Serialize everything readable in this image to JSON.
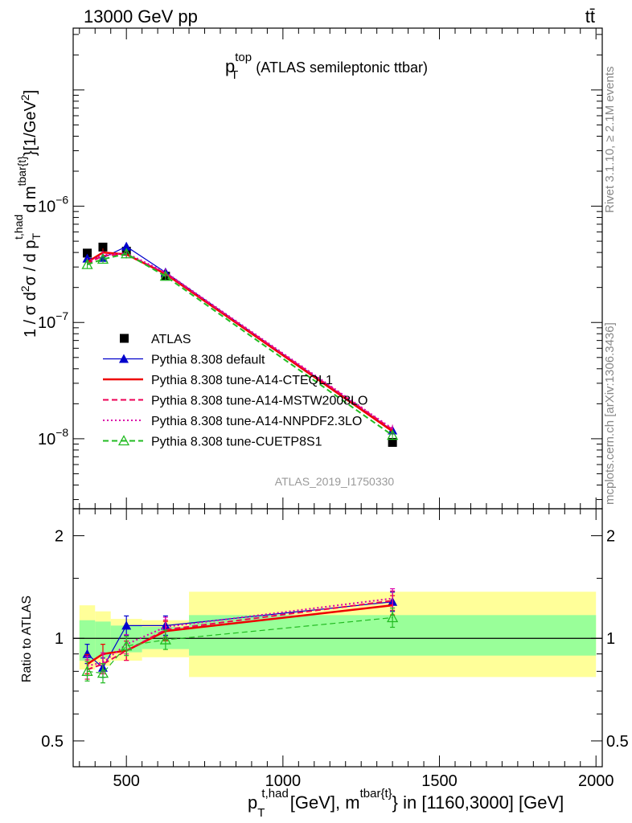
{
  "header": {
    "energy_label": "13000 GeV pp",
    "process_label": "tt̄"
  },
  "title": {
    "main": "p",
    "main_sup": "top",
    "main_sub": "T",
    "suffix": "(ATLAS semileptonic ttbar)"
  },
  "side": {
    "rivet": "Rivet 3.1.10, ≥ 2.1M events",
    "mcplots": "mcplots.cern.ch [arXiv:1306.3436]"
  },
  "analysis_label": "ATLAS_2019_I1750330",
  "ratio_ylabel": "Ratio to ATLAS",
  "colors": {
    "atlas": "#000000",
    "default": "#0000cc",
    "cteql1": "#ee0000",
    "mstw": "#ee0055",
    "nnpdf": "#dd00aa",
    "cuetp8s1": "#22bb22",
    "band_inner": "#99ff99",
    "band_outer": "#ffff99"
  },
  "chart_data": [
    {
      "type": "line",
      "panel": "main",
      "ylabel": "1 / σ d²σ / d p_T^{t,had} d m^{tbar{t}} [1/GeV²]",
      "yscale": "log",
      "xlim": [
        330,
        2020
      ],
      "ylim": [
        2.5e-09,
        3.4e-05
      ],
      "y_ticks": [
        {
          "value": 1e-08,
          "label": "10",
          "exp": "−8"
        },
        {
          "value": 1e-07,
          "label": "10",
          "exp": "−7"
        },
        {
          "value": 1e-06,
          "label": "10",
          "exp": "−6"
        }
      ],
      "legend_position": "lower-left",
      "series": [
        {
          "name": "ATLAS",
          "key": "atlas",
          "style": "marker-square",
          "x": [
            375,
            425,
            500,
            625,
            1350
          ],
          "y": [
            3.95e-07,
            4.45e-07,
            4.1e-07,
            2.5e-07,
            9.3e-09
          ]
        },
        {
          "name": "Pythia 8.308 default",
          "key": "default",
          "style": "solid-thin-triangle",
          "x": [
            375,
            425,
            500,
            625,
            1350
          ],
          "y": [
            3.55e-07,
            3.6e-07,
            4.5e-07,
            2.7e-07,
            1.18e-08
          ]
        },
        {
          "name": "Pythia 8.308 tune-A14-CTEQL1",
          "key": "cteql1",
          "style": "solid-thick",
          "x": [
            375,
            425,
            500,
            625,
            1350
          ],
          "y": [
            3.3e-07,
            4e-07,
            3.85e-07,
            2.62e-07,
            1.16e-08
          ]
        },
        {
          "name": "Pythia 8.308 tune-A14-MSTW2008LO",
          "key": "mstw",
          "style": "dashed",
          "x": [
            375,
            425,
            500,
            625,
            1350
          ],
          "y": [
            3.2e-07,
            3.75e-07,
            3.85e-07,
            2.65e-07,
            1.2e-08
          ]
        },
        {
          "name": "Pythia 8.308 tune-A14-NNPDF2.3LO",
          "key": "nnpdf",
          "style": "dotted",
          "x": [
            375,
            425,
            500,
            625,
            1350
          ],
          "y": [
            3.3e-07,
            3.8e-07,
            3.95e-07,
            2.7e-07,
            1.22e-08
          ]
        },
        {
          "name": "Pythia 8.308 tune-CUETP8S1",
          "key": "cuetp8s1",
          "style": "dashed-open-triangle",
          "x": [
            375,
            425,
            500,
            625,
            1350
          ],
          "y": [
            3.15e-07,
            3.5e-07,
            3.9e-07,
            2.5e-07,
            1.07e-08
          ]
        }
      ]
    },
    {
      "type": "line",
      "panel": "ratio",
      "ylabel": "Ratio to ATLAS",
      "yscale": "log",
      "xlabel": "p_T^{t,had} [GeV], m^{tbar{t}} in [1160,3000] [GeV]",
      "xlim": [
        330,
        2020
      ],
      "ylim": [
        0.42,
        2.4
      ],
      "x_ticks": [
        500,
        1000,
        1500,
        2000
      ],
      "y_ticks": [
        0.5,
        1,
        2
      ],
      "band_inner": [
        {
          "x0": 350,
          "x1": 400,
          "lo": 0.86,
          "hi": 1.13
        },
        {
          "x0": 400,
          "x1": 450,
          "lo": 0.88,
          "hi": 1.12
        },
        {
          "x0": 450,
          "x1": 550,
          "lo": 0.91,
          "hi": 1.09
        },
        {
          "x0": 550,
          "x1": 700,
          "lo": 0.93,
          "hi": 1.08
        },
        {
          "x0": 700,
          "x1": 2000,
          "lo": 0.89,
          "hi": 1.17
        }
      ],
      "band_outer": [
        {
          "x0": 350,
          "x1": 400,
          "lo": 0.81,
          "hi": 1.25
        },
        {
          "x0": 400,
          "x1": 450,
          "lo": 0.83,
          "hi": 1.2
        },
        {
          "x0": 450,
          "x1": 550,
          "lo": 0.86,
          "hi": 1.14
        },
        {
          "x0": 550,
          "x1": 700,
          "lo": 0.88,
          "hi": 1.13
        },
        {
          "x0": 700,
          "x1": 2000,
          "lo": 0.77,
          "hi": 1.37
        }
      ],
      "series": [
        {
          "name": "Pythia 8.308 default",
          "key": "default",
          "style": "solid-thin-triangle",
          "x": [
            375,
            425,
            500,
            625,
            1350
          ],
          "y": [
            0.9,
            0.82,
            1.09,
            1.09,
            1.28
          ]
        },
        {
          "name": "Pythia 8.308 tune-A14-CTEQL1",
          "key": "cteql1",
          "style": "solid-thick",
          "x": [
            375,
            425,
            500,
            625,
            1350
          ],
          "y": [
            0.84,
            0.9,
            0.92,
            1.05,
            1.25
          ]
        },
        {
          "name": "Pythia 8.308 tune-A14-MSTW2008LO",
          "key": "mstw",
          "style": "dashed",
          "x": [
            375,
            425,
            500,
            625,
            1350
          ],
          "y": [
            0.81,
            0.84,
            0.92,
            1.06,
            1.29
          ]
        },
        {
          "name": "Pythia 8.308 tune-A14-NNPDF2.3LO",
          "key": "nnpdf",
          "style": "dotted",
          "x": [
            375,
            425,
            500,
            625,
            1350
          ],
          "y": [
            0.83,
            0.85,
            0.96,
            1.08,
            1.31
          ]
        },
        {
          "name": "Pythia 8.308 tune-CUETP8S1",
          "key": "cuetp8s1",
          "style": "dashed-open-triangle",
          "x": [
            375,
            425,
            500,
            625,
            1350
          ],
          "y": [
            0.8,
            0.79,
            0.95,
            0.99,
            1.15
          ]
        }
      ]
    }
  ]
}
